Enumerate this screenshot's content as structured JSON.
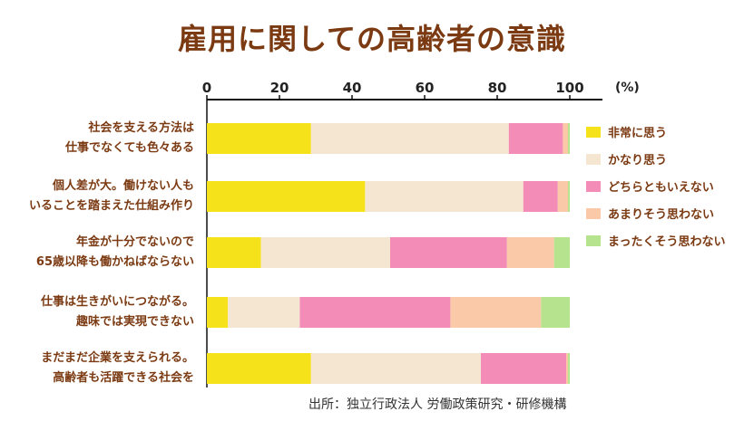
{
  "chart_data": {
    "type": "bar",
    "orientation": "horizontal",
    "stacked": true,
    "title": "雇用に関しての高齢者の意識",
    "unit_label": "(%)",
    "xlim": [
      0,
      100
    ],
    "x_ticks": [
      "0",
      "20",
      "40",
      "60",
      "80",
      "100"
    ],
    "legend_position": "right",
    "categories": [
      [
        "社会を支える方法は",
        "仕事でなくても色々ある"
      ],
      [
        "個人差が大。働けない人も",
        "いることを踏まえた仕組み作り"
      ],
      [
        "年金が十分でないので",
        "65歳以降も働かねばならない"
      ],
      [
        "仕事は生きがいにつながる。",
        "趣味では実現できない"
      ],
      [
        "まだまだ企業を支えられる。",
        "高齢者も活躍できる社会を"
      ]
    ],
    "series": [
      {
        "name": "非常に思う",
        "color": "#f5e21a",
        "values": [
          28.7,
          43.6,
          14.9,
          5.8,
          28.7
        ]
      },
      {
        "name": "かなり思う",
        "color": "#f4e6d0",
        "values": [
          54.5,
          43.6,
          35.6,
          19.8,
          46.8
        ]
      },
      {
        "name": "どちらともいえない",
        "color": "#f48cb8",
        "values": [
          14.9,
          9.5,
          32.2,
          41.5,
          23.5
        ]
      },
      {
        "name": "あまりそう思わない",
        "color": "#f9c9a8",
        "values": [
          1.4,
          2.8,
          13.0,
          25.0,
          0.5
        ]
      },
      {
        "name": "まったくそう思わない",
        "color": "#b6e48e",
        "values": [
          0.5,
          0.5,
          4.3,
          7.9,
          0.5
        ]
      }
    ],
    "source": "出所：独立行政法人 労働政策研究・研修機構"
  }
}
